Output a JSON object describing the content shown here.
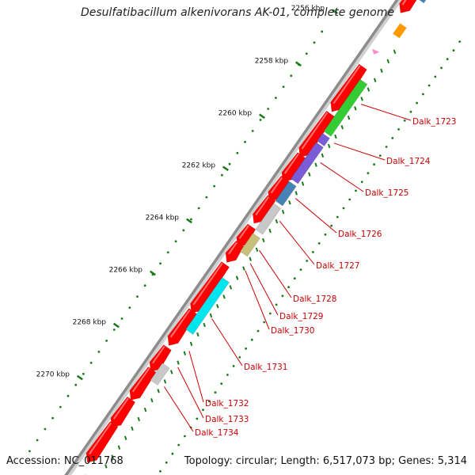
{
  "title": "Desulfatibacillum alkenivorans AK-01, complete genome",
  "footer": {
    "accession": "Accession: NC_011768",
    "summary": "Topology: circular; Length: 6,517,073 bp; Genes: 5,314"
  },
  "colors": {
    "backbone": "#8c8c8c",
    "cds": "#ff0000",
    "label": "#cc0000",
    "tick": "#1a7a1a",
    "gc_dots": "#1a7a1a"
  },
  "scale": {
    "unit": "kbp",
    "ticks": [
      {
        "label": "2256 kbp"
      },
      {
        "label": "2258 kbp"
      },
      {
        "label": "2260 kbp"
      },
      {
        "label": "2262 kbp"
      },
      {
        "label": "2264 kbp"
      },
      {
        "label": "2266 kbp"
      },
      {
        "label": "2268 kbp"
      },
      {
        "label": "2270 kbp"
      }
    ]
  },
  "genes": [
    {
      "label": "Dalk_1723",
      "color": "#33cc33"
    },
    {
      "label": "Dalk_1724",
      "color": "#7a5cd6"
    },
    {
      "label": "Dalk_1725",
      "color": "#7a5cd6"
    },
    {
      "label": "Dalk_1726",
      "color": "#4682b4"
    },
    {
      "label": "Dalk_1727",
      "color": "#c8c8c8"
    },
    {
      "label": "Dalk_1728",
      "color": "#c8c07a"
    },
    {
      "label": "Dalk_1729",
      "color": "#ffffff"
    },
    {
      "label": "Dalk_1730",
      "color": "#ffffff"
    },
    {
      "label": "Dalk_1731",
      "color": "#00e5ee"
    },
    {
      "label": "Dalk_1732",
      "color": "#ffffff"
    },
    {
      "label": "Dalk_1733",
      "color": "#c8c8c8"
    },
    {
      "label": "Dalk_1734",
      "color": "#ffffff"
    }
  ]
}
